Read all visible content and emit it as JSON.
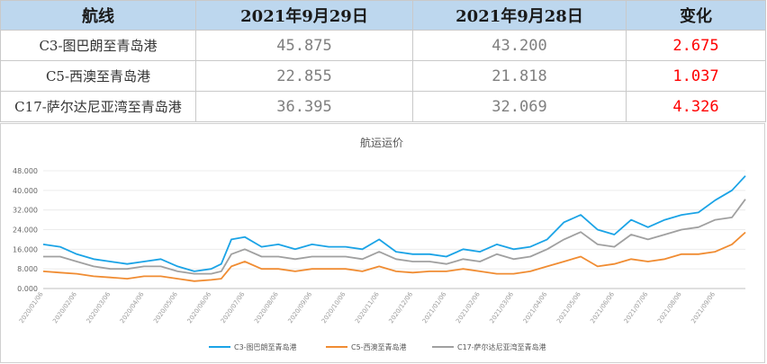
{
  "table": {
    "headers": [
      "航线",
      "2021年9月29日",
      "2021年9月28日",
      "变化"
    ],
    "rows": [
      {
        "route": "C3-图巴朗至青岛港",
        "v1": "45.875",
        "v2": "43.200",
        "chg": "2.675"
      },
      {
        "route": "C5-西澳至青岛港",
        "v1": "22.855",
        "v2": "21.818",
        "chg": "1.037"
      },
      {
        "route": "C17-萨尔达尼亚湾至青岛港",
        "v1": "36.395",
        "v2": "32.069",
        "chg": "4.326"
      }
    ]
  },
  "chart_data": {
    "type": "line",
    "title": "航运运价",
    "ylim": [
      0,
      48
    ],
    "yticks": [
      "0.000",
      "8.000",
      "16.000",
      "24.000",
      "32.000",
      "40.000",
      "48.000"
    ],
    "x_tick_labels": [
      "2020/01/06",
      "2020/02/06",
      "2020/03/06",
      "2020/04/06",
      "2020/05/06",
      "2020/06/06",
      "2020/07/06",
      "2020/08/06",
      "2020/09/06",
      "2020/10/06",
      "2020/11/06",
      "2020/12/06",
      "2021/01/06",
      "2021/02/06",
      "2021/03/06",
      "2021/04/06",
      "2021/05/06",
      "2021/06/06",
      "2021/07/06",
      "2021/08/06",
      "2021/09/06"
    ],
    "x_months": [
      0,
      0.5,
      1,
      1.5,
      2,
      2.5,
      3,
      3.5,
      4,
      4.5,
      5,
      5.3,
      5.6,
      6,
      6.5,
      7,
      7.5,
      8,
      8.5,
      9,
      9.5,
      10,
      10.5,
      11,
      11.5,
      12,
      12.5,
      13,
      13.5,
      14,
      14.5,
      15,
      15.5,
      16,
      16.5,
      17,
      17.5,
      18,
      18.5,
      19,
      19.5,
      20,
      20.5,
      20.9
    ],
    "series": [
      {
        "name": "C3-图巴朗至青岛港",
        "color": "#1aa3e6",
        "values": [
          18,
          17,
          14,
          12,
          11,
          10,
          11,
          12,
          9,
          7,
          8,
          10,
          20,
          21,
          17,
          18,
          16,
          18,
          17,
          17,
          16,
          20,
          15,
          14,
          14,
          13,
          16,
          15,
          18,
          16,
          17,
          20,
          27,
          30,
          24,
          22,
          28,
          25,
          28,
          30,
          31,
          36,
          40,
          45.9
        ]
      },
      {
        "name": "C5-西澳至青岛港",
        "color": "#f08c32",
        "values": [
          7,
          6.5,
          6,
          5,
          4.5,
          4,
          5,
          5,
          4,
          3,
          3.5,
          4,
          9,
          11,
          8,
          8,
          7,
          8,
          8,
          8,
          7,
          9,
          7,
          6.5,
          7,
          7,
          8,
          7,
          6,
          6,
          7,
          9,
          11,
          13,
          9,
          10,
          12,
          11,
          12,
          14,
          14,
          15,
          18,
          22.9
        ]
      },
      {
        "name": "C17-萨尔达尼亚湾至青岛港",
        "color": "#a0a0a0",
        "values": [
          13,
          13,
          11,
          9,
          8,
          8,
          9,
          9,
          7,
          6,
          6,
          7,
          14,
          16,
          13,
          13,
          12,
          13,
          13,
          13,
          12,
          15,
          12,
          11,
          11,
          10,
          12,
          11,
          14,
          12,
          13,
          16,
          20,
          23,
          18,
          17,
          22,
          20,
          22,
          24,
          25,
          28,
          29,
          36.4
        ]
      }
    ],
    "legend_position": "bottom"
  }
}
